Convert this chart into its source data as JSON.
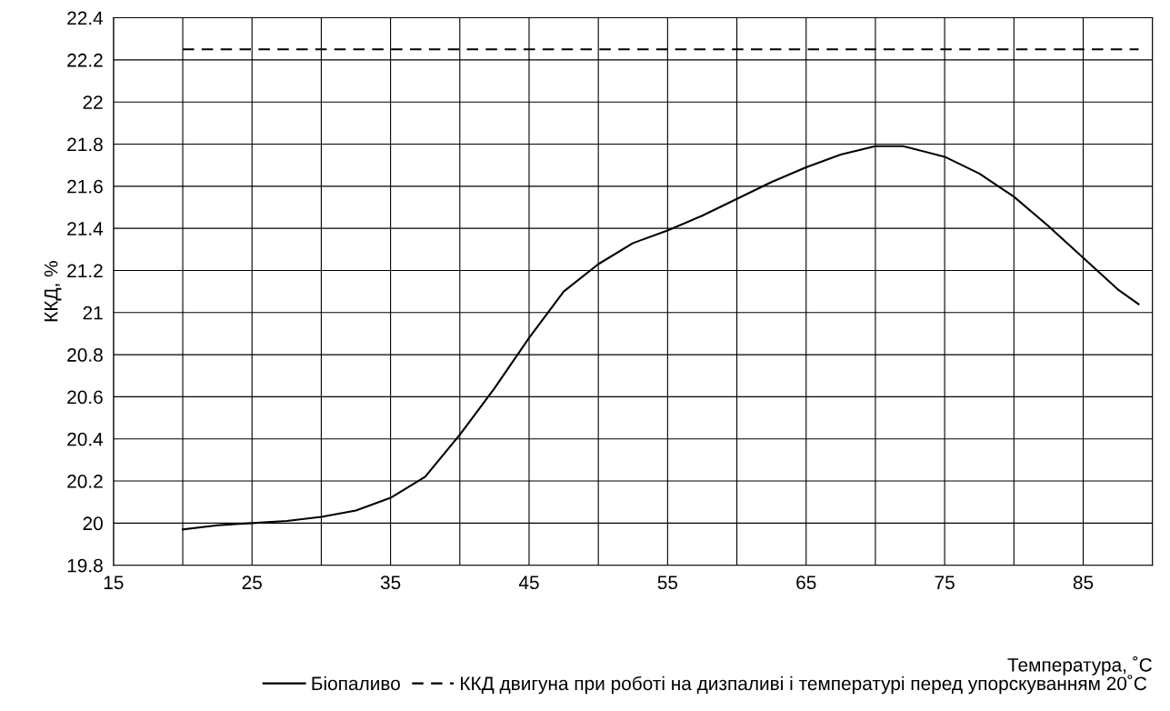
{
  "chart_data": {
    "type": "line",
    "xlabel": "Температура, ˚С",
    "ylabel": "ККД, %",
    "xlim": [
      15,
      90
    ],
    "xticks": [
      15,
      {
        "value": 20,
        "label": null
      },
      25,
      {
        "value": 30,
        "label": null
      },
      35,
      {
        "value": 40,
        "label": null
      },
      45,
      {
        "value": 50,
        "label": null
      },
      55,
      {
        "value": 60,
        "label": null
      },
      65,
      {
        "value": 70,
        "label": null
      },
      75,
      {
        "value": 80,
        "label": null
      },
      85,
      {
        "value": 90,
        "label": null
      }
    ],
    "ylim": [
      19.8,
      22.4
    ],
    "yticks": [
      19.8,
      20,
      20.2,
      20.4,
      20.6,
      20.8,
      21,
      21.2,
      21.4,
      21.6,
      21.8,
      22,
      22.2,
      22.4
    ],
    "grid": true,
    "legend": "bottom",
    "series": [
      {
        "name": "Біопаливо",
        "color": "#000000",
        "line_style": "solid",
        "x": [
          20,
          22.5,
          25,
          27.5,
          30,
          32.5,
          35,
          37.5,
          40,
          42.5,
          45,
          47.5,
          50,
          52.5,
          55,
          57.5,
          60,
          62.5,
          65,
          67.5,
          70,
          72,
          75,
          77.5,
          80,
          82.5,
          85,
          87.5,
          89
        ],
        "values": [
          19.97,
          19.99,
          20.0,
          20.01,
          20.03,
          20.06,
          20.12,
          20.22,
          20.42,
          20.64,
          20.88,
          21.1,
          21.23,
          21.33,
          21.39,
          21.46,
          21.54,
          21.62,
          21.69,
          21.75,
          21.79,
          21.79,
          21.74,
          21.66,
          21.55,
          21.41,
          21.26,
          21.11,
          21.04
        ]
      },
      {
        "name": "ККД двигуна при роботі на дизпаливі і температурі перед упорскуванням 20˚С",
        "color": "#000000",
        "line_style": "dashed",
        "x": [
          20,
          89
        ],
        "values": [
          22.25,
          22.25
        ]
      }
    ]
  }
}
